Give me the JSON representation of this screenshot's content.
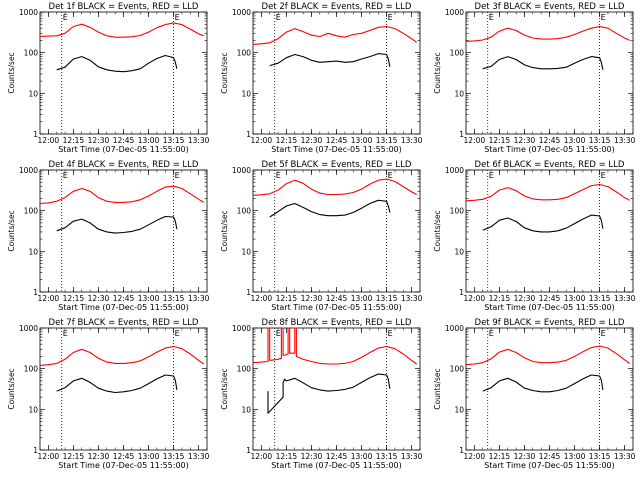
{
  "figure": {
    "xlabel": "Start Time (07-Dec-05 11:55:00)",
    "ylabel": "Counts/sec",
    "xticks": [
      "12:00",
      "12:15",
      "12:30",
      "12:45",
      "13:00",
      "13:15",
      "13:30"
    ],
    "yticks": [
      "1",
      "10",
      "100",
      "1000"
    ]
  },
  "colors": {
    "events": "#000000",
    "lld": "#ff0000"
  },
  "chart_data": [
    {
      "type": "line",
      "title": "Det 1f BLACK = Events, RED = LLD",
      "xlim": [
        "11:55",
        "13:35"
      ],
      "ylim": [
        1,
        1000
      ],
      "yscale": "log",
      "markers": [
        {
          "label": "E",
          "time": "12:08"
        },
        {
          "label": "E",
          "time": "13:15"
        }
      ],
      "series": [
        {
          "name": "LLD",
          "x": [
            "11:55",
            "12:00",
            "12:05",
            "12:10",
            "12:15",
            "12:20",
            "12:25",
            "12:30",
            "12:35",
            "12:40",
            "12:45",
            "12:50",
            "12:55",
            "13:00",
            "13:05",
            "13:10",
            "13:15",
            "13:20",
            "13:25",
            "13:30",
            "13:33"
          ],
          "values": [
            250,
            255,
            260,
            300,
            440,
            500,
            420,
            320,
            260,
            240,
            240,
            245,
            265,
            320,
            410,
            490,
            540,
            490,
            380,
            290,
            260
          ]
        },
        {
          "name": "Events",
          "x": [
            "12:05",
            "12:10",
            "12:15",
            "12:20",
            "12:25",
            "12:30",
            "12:35",
            "12:40",
            "12:45",
            "12:50",
            "12:55",
            "13:00",
            "13:05",
            "13:10",
            "13:15",
            "13:16",
            "13:17"
          ],
          "values": [
            38,
            44,
            70,
            80,
            65,
            45,
            38,
            35,
            34,
            36,
            40,
            55,
            72,
            85,
            75,
            58,
            40
          ]
        }
      ]
    },
    {
      "type": "line",
      "title": "Det 2f BLACK = Events, RED = LLD",
      "xlim": [
        "11:55",
        "13:35"
      ],
      "ylim": [
        1,
        1000
      ],
      "yscale": "log",
      "markers": [
        {
          "label": "E",
          "time": "12:08"
        },
        {
          "label": "E",
          "time": "13:15"
        }
      ],
      "series": [
        {
          "name": "LLD",
          "x": [
            "11:55",
            "12:00",
            "12:05",
            "12:10",
            "12:15",
            "12:20",
            "12:25",
            "12:30",
            "12:35",
            "12:40",
            "12:45",
            "12:50",
            "12:55",
            "13:00",
            "13:05",
            "13:10",
            "13:15",
            "13:20",
            "13:25",
            "13:30",
            "13:33"
          ],
          "values": [
            160,
            165,
            175,
            220,
            320,
            390,
            330,
            270,
            250,
            300,
            260,
            240,
            280,
            300,
            350,
            420,
            440,
            390,
            300,
            220,
            180
          ]
        },
        {
          "name": "Events",
          "x": [
            "12:05",
            "12:10",
            "12:15",
            "12:20",
            "12:25",
            "12:30",
            "12:35",
            "12:40",
            "12:45",
            "12:50",
            "12:55",
            "13:00",
            "13:05",
            "13:10",
            "13:15",
            "13:16",
            "13:17"
          ],
          "values": [
            48,
            55,
            75,
            90,
            80,
            65,
            58,
            60,
            62,
            58,
            60,
            70,
            80,
            95,
            90,
            70,
            45
          ]
        }
      ]
    },
    {
      "type": "line",
      "title": "Det 3f BLACK = Events, RED = LLD",
      "xlim": [
        "11:55",
        "13:35"
      ],
      "ylim": [
        1,
        1000
      ],
      "yscale": "log",
      "markers": [
        {
          "label": "E",
          "time": "12:08"
        },
        {
          "label": "E",
          "time": "13:15"
        }
      ],
      "series": [
        {
          "name": "LLD",
          "x": [
            "11:55",
            "12:00",
            "12:05",
            "12:10",
            "12:15",
            "12:20",
            "12:25",
            "12:30",
            "12:35",
            "12:40",
            "12:45",
            "12:50",
            "12:55",
            "13:00",
            "13:05",
            "13:10",
            "13:15",
            "13:20",
            "13:25",
            "13:30",
            "13:33"
          ],
          "values": [
            190,
            195,
            205,
            240,
            340,
            400,
            350,
            270,
            230,
            215,
            215,
            220,
            240,
            280,
            340,
            400,
            440,
            400,
            300,
            230,
            200
          ]
        },
        {
          "name": "Events",
          "x": [
            "12:05",
            "12:10",
            "12:15",
            "12:20",
            "12:25",
            "12:30",
            "12:35",
            "12:40",
            "12:45",
            "12:50",
            "12:55",
            "13:00",
            "13:05",
            "13:10",
            "13:15",
            "13:16",
            "13:17"
          ],
          "values": [
            40,
            46,
            68,
            80,
            68,
            50,
            43,
            40,
            40,
            41,
            44,
            55,
            68,
            80,
            75,
            58,
            38
          ]
        }
      ]
    },
    {
      "type": "line",
      "title": "Det 4f BLACK = Events, RED = LLD",
      "xlim": [
        "11:55",
        "13:35"
      ],
      "ylim": [
        1,
        1000
      ],
      "yscale": "log",
      "markers": [
        {
          "label": "E",
          "time": "12:08"
        },
        {
          "label": "E",
          "time": "13:15"
        }
      ],
      "series": [
        {
          "name": "LLD",
          "x": [
            "11:55",
            "12:00",
            "12:05",
            "12:10",
            "12:15",
            "12:20",
            "12:25",
            "12:30",
            "12:35",
            "12:40",
            "12:45",
            "12:50",
            "12:55",
            "13:00",
            "13:05",
            "13:10",
            "13:15",
            "13:20",
            "13:25",
            "13:30",
            "13:33"
          ],
          "values": [
            150,
            155,
            170,
            210,
            300,
            350,
            300,
            210,
            170,
            160,
            160,
            165,
            185,
            230,
            300,
            380,
            400,
            350,
            260,
            190,
            160
          ]
        },
        {
          "name": "Events",
          "x": [
            "12:05",
            "12:10",
            "12:15",
            "12:20",
            "12:25",
            "12:30",
            "12:35",
            "12:40",
            "12:45",
            "12:50",
            "12:55",
            "13:00",
            "13:05",
            "13:10",
            "13:15",
            "13:16",
            "13:17"
          ],
          "values": [
            32,
            38,
            55,
            62,
            50,
            35,
            30,
            28,
            29,
            31,
            35,
            45,
            58,
            72,
            70,
            55,
            35
          ]
        }
      ]
    },
    {
      "type": "line",
      "title": "Det 5f BLACK = Events, RED = LLD",
      "xlim": [
        "11:55",
        "13:35"
      ],
      "ylim": [
        1,
        1000
      ],
      "yscale": "log",
      "markers": [
        {
          "label": "E",
          "time": "12:08"
        },
        {
          "label": "E",
          "time": "13:15"
        }
      ],
      "series": [
        {
          "name": "LLD",
          "x": [
            "11:55",
            "12:00",
            "12:05",
            "12:10",
            "12:15",
            "12:20",
            "12:25",
            "12:30",
            "12:35",
            "12:40",
            "12:45",
            "12:50",
            "12:55",
            "13:00",
            "13:05",
            "13:10",
            "13:15",
            "13:20",
            "13:25",
            "13:30",
            "13:33"
          ],
          "values": [
            240,
            245,
            260,
            320,
            460,
            560,
            470,
            340,
            270,
            250,
            250,
            255,
            280,
            340,
            450,
            560,
            600,
            520,
            390,
            290,
            250
          ]
        },
        {
          "name": "Events",
          "x": [
            "12:05",
            "12:10",
            "12:15",
            "12:20",
            "12:25",
            "12:30",
            "12:35",
            "12:40",
            "12:45",
            "12:50",
            "12:55",
            "13:00",
            "13:05",
            "13:10",
            "13:15",
            "13:16",
            "13:17"
          ],
          "values": [
            70,
            95,
            130,
            150,
            120,
            95,
            80,
            75,
            75,
            78,
            90,
            115,
            150,
            180,
            170,
            130,
            90
          ]
        }
      ]
    },
    {
      "type": "line",
      "title": "Det 6f BLACK = Events, RED = LLD",
      "xlim": [
        "11:55",
        "13:35"
      ],
      "ylim": [
        1,
        1000
      ],
      "yscale": "log",
      "markers": [
        {
          "label": "E",
          "time": "12:08"
        },
        {
          "label": "E",
          "time": "13:15"
        }
      ],
      "series": [
        {
          "name": "LLD",
          "x": [
            "11:55",
            "12:00",
            "12:05",
            "12:10",
            "12:15",
            "12:20",
            "12:25",
            "12:30",
            "12:35",
            "12:40",
            "12:45",
            "12:50",
            "12:55",
            "13:00",
            "13:05",
            "13:10",
            "13:15",
            "13:20",
            "13:25",
            "13:30",
            "13:33"
          ],
          "values": [
            175,
            180,
            190,
            225,
            320,
            370,
            310,
            230,
            195,
            185,
            185,
            190,
            210,
            260,
            330,
            410,
            440,
            390,
            290,
            210,
            180
          ]
        },
        {
          "name": "Events",
          "x": [
            "12:05",
            "12:10",
            "12:15",
            "12:20",
            "12:25",
            "12:30",
            "12:35",
            "12:40",
            "12:45",
            "12:50",
            "12:55",
            "13:00",
            "13:05",
            "13:10",
            "13:15",
            "13:16",
            "13:17"
          ],
          "values": [
            33,
            40,
            58,
            66,
            54,
            38,
            32,
            30,
            30,
            32,
            37,
            48,
            62,
            78,
            74,
            58,
            36
          ]
        }
      ]
    },
    {
      "type": "line",
      "title": "Det 7f BLACK = Events, RED = LLD",
      "xlim": [
        "11:55",
        "13:35"
      ],
      "ylim": [
        1,
        1000
      ],
      "yscale": "log",
      "markers": [
        {
          "label": "E",
          "time": "12:08"
        },
        {
          "label": "E",
          "time": "13:15"
        }
      ],
      "series": [
        {
          "name": "LLD",
          "x": [
            "11:55",
            "12:00",
            "12:05",
            "12:10",
            "12:15",
            "12:20",
            "12:25",
            "12:30",
            "12:35",
            "12:40",
            "12:45",
            "12:50",
            "12:55",
            "13:00",
            "13:05",
            "13:10",
            "13:15",
            "13:20",
            "13:25",
            "13:30",
            "13:33"
          ],
          "values": [
            120,
            125,
            135,
            170,
            250,
            300,
            250,
            180,
            145,
            135,
            135,
            140,
            155,
            195,
            255,
            320,
            350,
            310,
            230,
            160,
            130
          ]
        },
        {
          "name": "Events",
          "x": [
            "12:05",
            "12:10",
            "12:15",
            "12:20",
            "12:25",
            "12:30",
            "12:35",
            "12:40",
            "12:45",
            "12:50",
            "12:55",
            "13:00",
            "13:05",
            "13:10",
            "13:15",
            "13:16",
            "13:17"
          ],
          "values": [
            28,
            34,
            50,
            58,
            46,
            33,
            28,
            26,
            27,
            29,
            33,
            43,
            56,
            70,
            66,
            52,
            30
          ]
        }
      ]
    },
    {
      "type": "line",
      "title": "Det 8f BLACK = Events, RED = LLD",
      "xlim": [
        "11:55",
        "13:35"
      ],
      "ylim": [
        1,
        1000
      ],
      "yscale": "log",
      "markers": [
        {
          "label": "E",
          "time": "12:08"
        },
        {
          "label": "E",
          "time": "13:15"
        }
      ],
      "series": [
        {
          "name": "LLD",
          "x": [
            "11:55",
            "12:00",
            "12:04",
            "12:04",
            "12:05",
            "12:05",
            "12:10",
            "12:12",
            "12:12",
            "12:13",
            "12:13",
            "12:16",
            "12:16",
            "12:17",
            "12:17",
            "12:20",
            "12:20",
            "12:21",
            "12:21",
            "12:25",
            "12:30",
            "12:35",
            "12:40",
            "12:45",
            "12:50",
            "12:55",
            "13:00",
            "13:05",
            "13:10",
            "13:15",
            "13:20",
            "13:25",
            "13:30",
            "13:33"
          ],
          "values": [
            140,
            145,
            150,
            1000,
            1000,
            160,
            170,
            180,
            1000,
            1000,
            210,
            230,
            1000,
            1000,
            240,
            240,
            1000,
            1000,
            200,
            170,
            150,
            135,
            130,
            130,
            135,
            150,
            190,
            250,
            320,
            350,
            310,
            230,
            160,
            130
          ]
        },
        {
          "name": "Events",
          "x": [
            "12:04",
            "12:04",
            "12:04",
            "12:13",
            "12:13",
            "12:14",
            "12:15",
            "12:20",
            "12:25",
            "12:30",
            "12:35",
            "12:40",
            "12:45",
            "12:50",
            "12:55",
            "13:00",
            "13:05",
            "13:10",
            "13:15",
            "13:16",
            "13:17"
          ],
          "values": [
            28,
            14,
            8,
            20,
            45,
            55,
            50,
            58,
            45,
            34,
            30,
            28,
            29,
            31,
            35,
            46,
            60,
            74,
            70,
            55,
            32
          ]
        }
      ]
    },
    {
      "type": "line",
      "title": "Det 9f BLACK = Events, RED = LLD",
      "xlim": [
        "11:55",
        "13:35"
      ],
      "ylim": [
        1,
        1000
      ],
      "yscale": "log",
      "markers": [
        {
          "label": "E",
          "time": "12:08"
        },
        {
          "label": "E",
          "time": "13:15"
        }
      ],
      "series": [
        {
          "name": "LLD",
          "x": [
            "11:55",
            "12:00",
            "12:05",
            "12:10",
            "12:15",
            "12:20",
            "12:25",
            "12:30",
            "12:35",
            "12:40",
            "12:45",
            "12:50",
            "12:55",
            "13:00",
            "13:05",
            "13:10",
            "13:15",
            "13:20",
            "13:25",
            "13:30",
            "13:33"
          ],
          "values": [
            125,
            130,
            140,
            175,
            255,
            300,
            250,
            185,
            150,
            140,
            140,
            145,
            160,
            200,
            260,
            330,
            360,
            320,
            235,
            165,
            135
          ]
        },
        {
          "name": "Events",
          "x": [
            "12:05",
            "12:10",
            "12:15",
            "12:20",
            "12:25",
            "12:30",
            "12:35",
            "12:40",
            "12:45",
            "12:50",
            "12:55",
            "13:00",
            "13:05",
            "13:10",
            "13:15",
            "13:16",
            "13:17"
          ],
          "values": [
            28,
            34,
            50,
            58,
            47,
            33,
            29,
            27,
            27,
            29,
            33,
            43,
            56,
            70,
            66,
            52,
            30
          ]
        }
      ]
    }
  ]
}
